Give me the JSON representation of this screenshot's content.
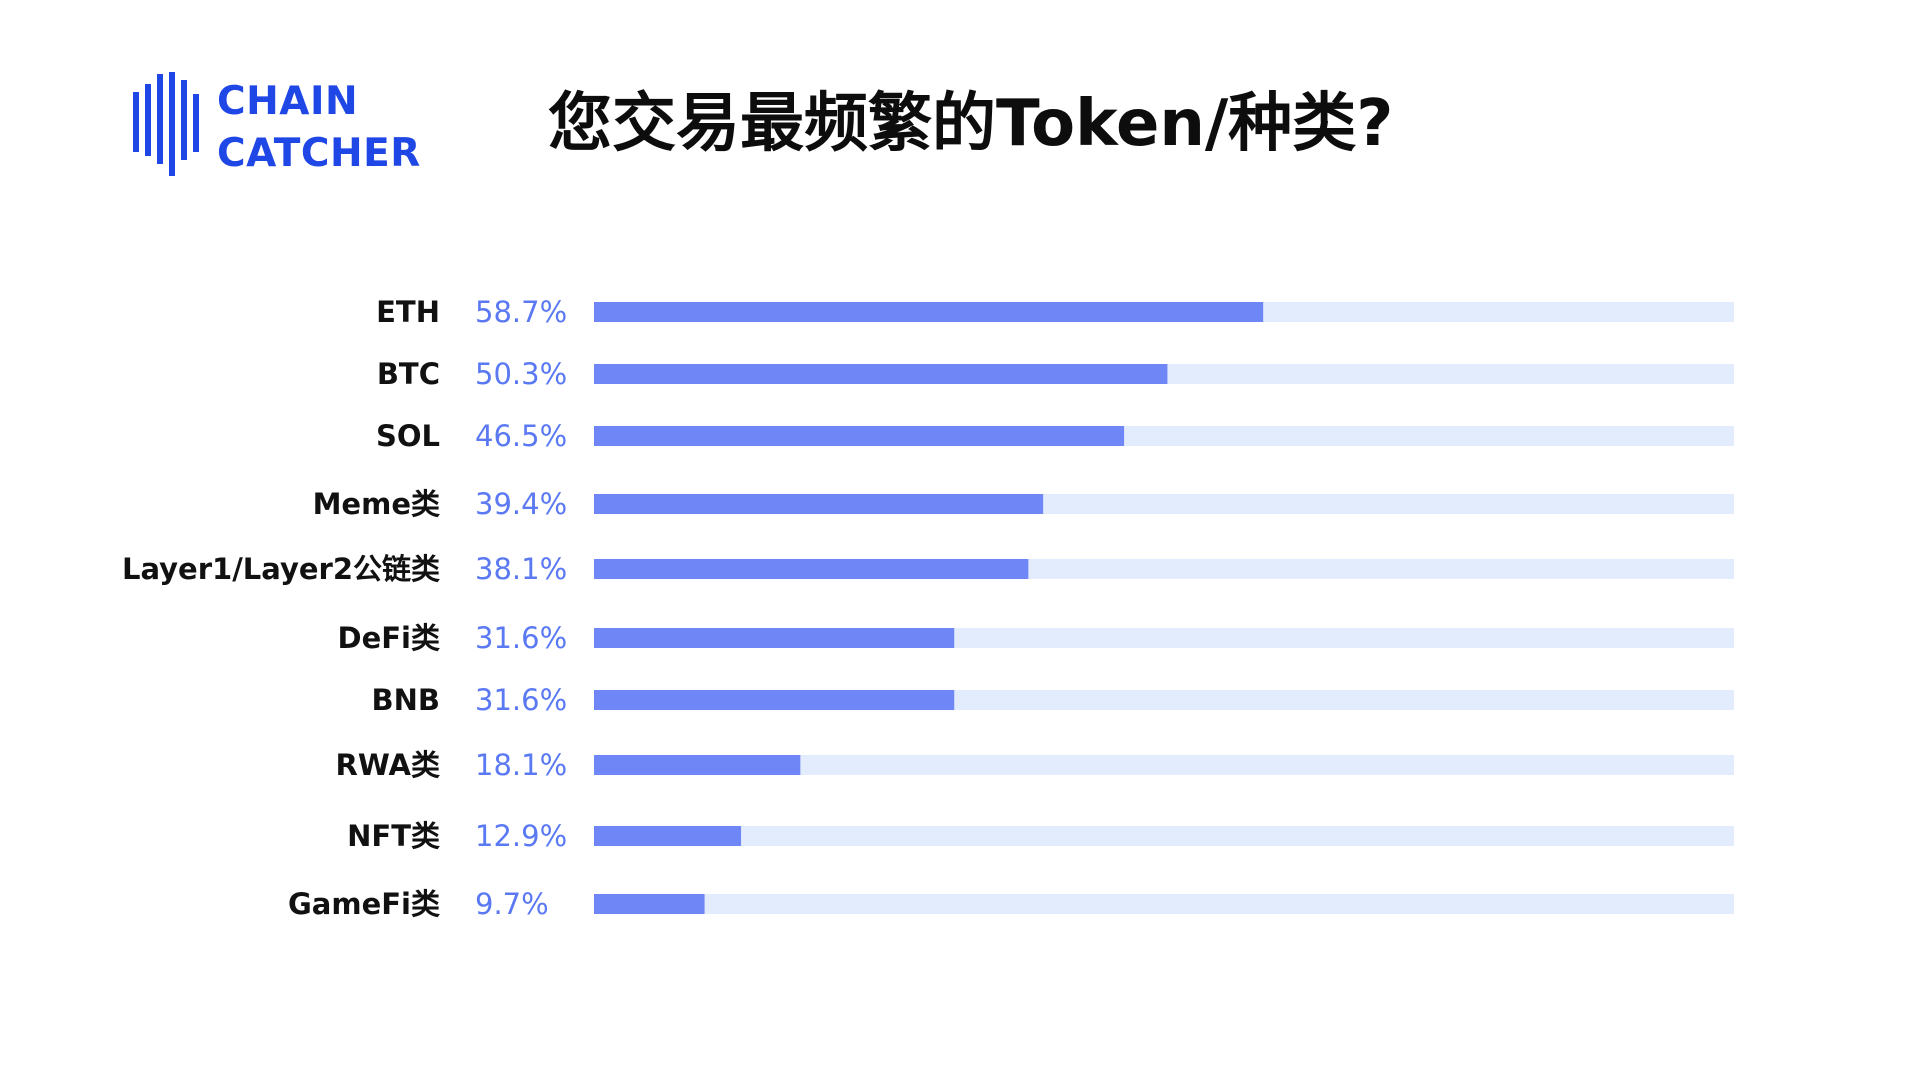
{
  "logo": {
    "line1": "CHAIN",
    "line2": "CATCHER",
    "icon": "chaincatcher-logo-icon",
    "color": "#1f47e6"
  },
  "chart_data": {
    "type": "bar",
    "orientation": "horizontal",
    "title": "您交易最频繁的Token/种类?",
    "categories": [
      "ETH",
      "BTC",
      "SOL",
      "Meme类",
      "Layer1/Layer2公链类",
      "DeFi类",
      "BNB",
      "RWA类",
      "NFT类",
      "GameFi类"
    ],
    "values": [
      58.7,
      50.3,
      46.5,
      39.4,
      38.1,
      31.6,
      31.6,
      18.1,
      12.9,
      9.7
    ],
    "value_labels": [
      "58.7%",
      "50.3%",
      "46.5%",
      "39.4%",
      "38.1%",
      "31.6%",
      "31.6%",
      "18.1%",
      "12.9%",
      "9.7%"
    ],
    "xlim": [
      0,
      100
    ],
    "unit": "%",
    "bar_color": "#6f86f7",
    "track_color": "#e3ecfc",
    "value_label_color": "#5b79f2",
    "grid": false,
    "legend": "none"
  }
}
